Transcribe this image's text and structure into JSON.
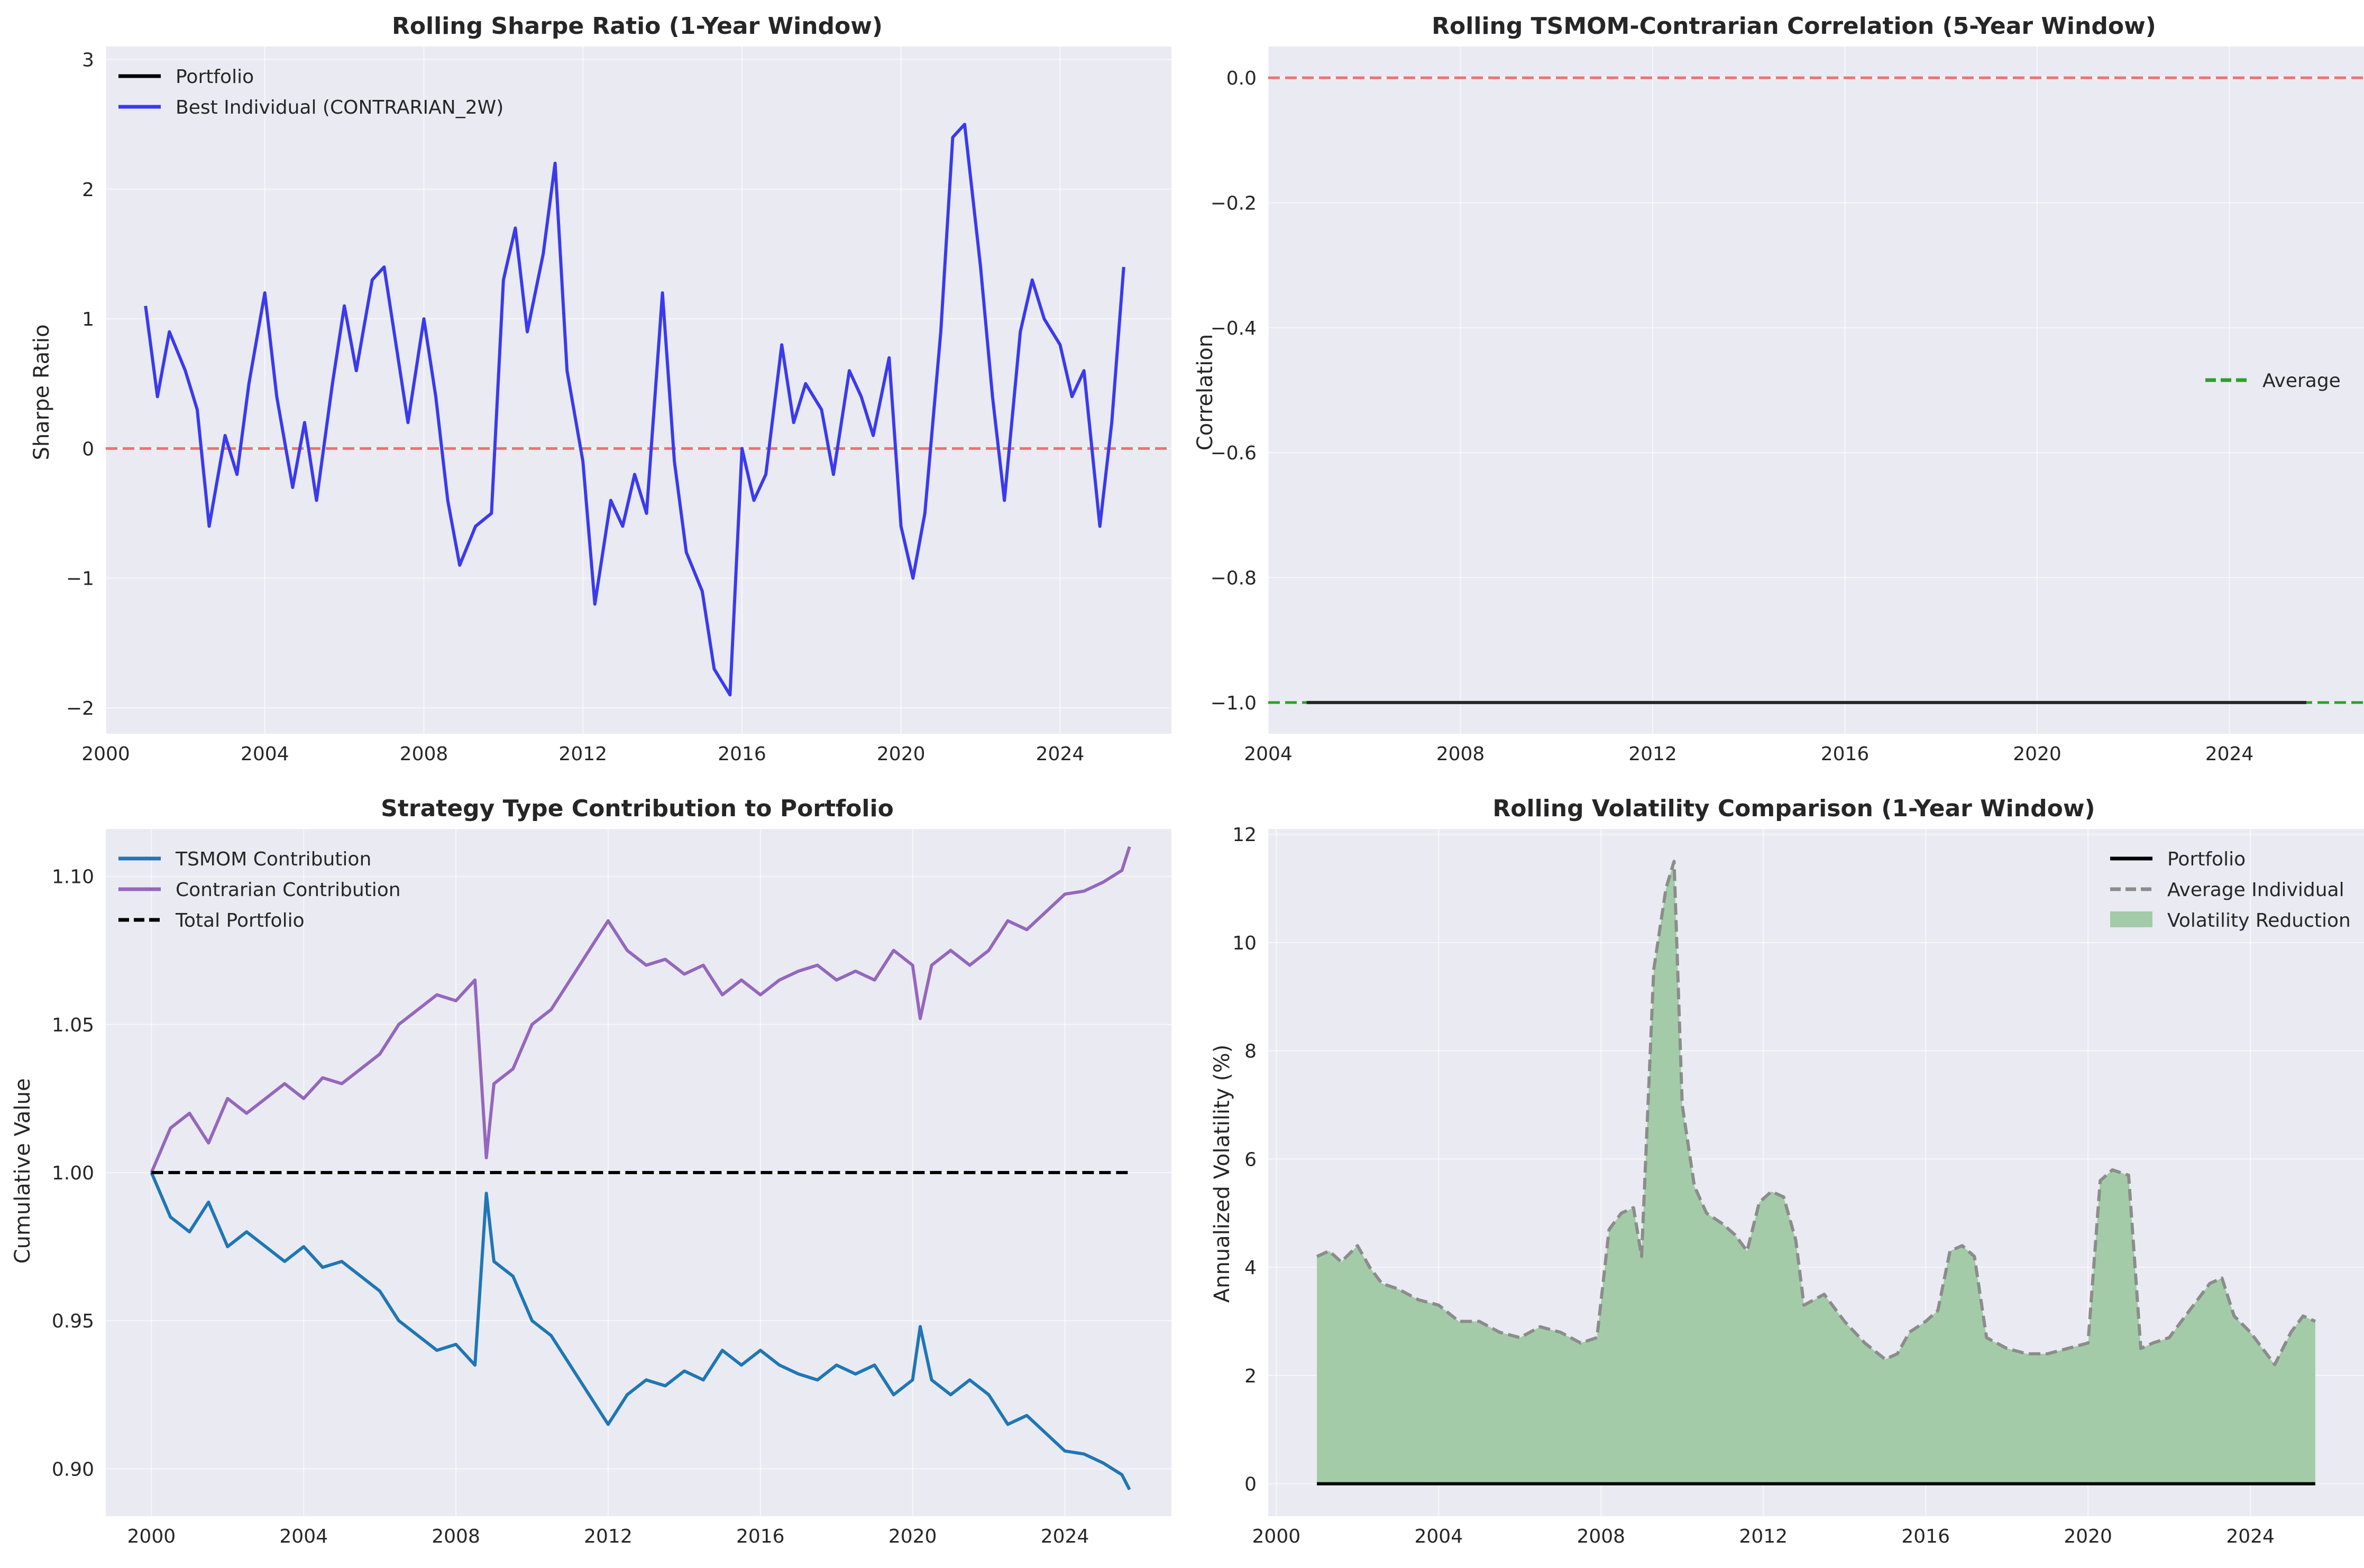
{
  "figure": {
    "background": "#ffffff",
    "axes_background": "#eaeaf2",
    "grid_color": "#ffffff"
  },
  "chart_data": [
    {
      "id": "sharpe",
      "type": "line",
      "title": "Rolling Sharpe Ratio (1-Year Window)",
      "xlabel": "",
      "ylabel": "Sharpe Ratio",
      "xlim": [
        2000,
        2026.8
      ],
      "ylim": [
        -2.2,
        3.1
      ],
      "xticks": [
        2000,
        2004,
        2008,
        2012,
        2016,
        2020,
        2024
      ],
      "yticks": [
        -2,
        -1,
        0,
        1,
        2,
        3
      ],
      "ytick_labels": [
        "−2",
        "−1",
        "0",
        "1",
        "2",
        "3"
      ],
      "grid": true,
      "legend": {
        "placement": "upper-left",
        "entries": [
          {
            "label": "Portfolio",
            "color": "#000000",
            "style": "solid"
          },
          {
            "label": "Best Individual (CONTRARIAN_2W)",
            "color": "#3a3aef",
            "style": "solid"
          }
        ]
      },
      "hlines": [
        {
          "y": 0,
          "color": "#f07070",
          "style": "dashed"
        }
      ],
      "series": [
        {
          "name": "Best Individual (CONTRARIAN_2W)",
          "color": "#3a3aef",
          "x": [
            2001.0,
            2001.3,
            2001.6,
            2002.0,
            2002.3,
            2002.6,
            2003.0,
            2003.3,
            2003.6,
            2004.0,
            2004.3,
            2004.7,
            2005.0,
            2005.3,
            2005.7,
            2006.0,
            2006.3,
            2006.7,
            2007.0,
            2007.3,
            2007.6,
            2008.0,
            2008.3,
            2008.6,
            2008.9,
            2009.3,
            2009.7,
            2010.0,
            2010.3,
            2010.6,
            2011.0,
            2011.3,
            2011.6,
            2012.0,
            2012.3,
            2012.7,
            2013.0,
            2013.3,
            2013.6,
            2014.0,
            2014.3,
            2014.6,
            2015.0,
            2015.3,
            2015.7,
            2016.0,
            2016.3,
            2016.6,
            2017.0,
            2017.3,
            2017.6,
            2018.0,
            2018.3,
            2018.7,
            2019.0,
            2019.3,
            2019.7,
            2020.0,
            2020.3,
            2020.6,
            2021.0,
            2021.3,
            2021.6,
            2022.0,
            2022.3,
            2022.6,
            2023.0,
            2023.3,
            2023.6,
            2024.0,
            2024.3,
            2024.6,
            2025.0,
            2025.3,
            2025.6
          ],
          "y": [
            1.1,
            0.4,
            0.9,
            0.6,
            0.3,
            -0.6,
            0.1,
            -0.2,
            0.5,
            1.2,
            0.4,
            -0.3,
            0.2,
            -0.4,
            0.5,
            1.1,
            0.6,
            1.3,
            1.4,
            0.8,
            0.2,
            1.0,
            0.4,
            -0.4,
            -0.9,
            -0.6,
            -0.5,
            1.3,
            1.7,
            0.9,
            1.5,
            2.2,
            0.6,
            -0.1,
            -1.2,
            -0.4,
            -0.6,
            -0.2,
            -0.5,
            1.2,
            -0.1,
            -0.8,
            -1.1,
            -1.7,
            -1.9,
            0.0,
            -0.4,
            -0.2,
            0.8,
            0.2,
            0.5,
            0.3,
            -0.2,
            0.6,
            0.4,
            0.1,
            0.7,
            -0.6,
            -1.0,
            -0.5,
            0.9,
            2.4,
            2.5,
            1.4,
            0.4,
            -0.4,
            0.9,
            1.3,
            1.0,
            0.8,
            0.4,
            0.6,
            -0.6,
            0.2,
            1.4
          ]
        }
      ]
    },
    {
      "id": "corr",
      "type": "line",
      "title": "Rolling TSMOM-Contrarian Correlation (5-Year Window)",
      "xlabel": "",
      "ylabel": "Correlation",
      "xlim": [
        2004.0,
        2026.8
      ],
      "ylim": [
        -1.05,
        0.05
      ],
      "xticks": [
        2004,
        2008,
        2012,
        2016,
        2020,
        2024
      ],
      "yticks": [
        -1.0,
        -0.8,
        -0.6,
        -0.4,
        -0.2,
        0.0
      ],
      "ytick_labels": [
        "−1.0",
        "−0.8",
        "−0.6",
        "−0.4",
        "−0.2",
        "0.0"
      ],
      "grid": true,
      "legend": {
        "placement": "center-right",
        "entries": [
          {
            "label": "Average",
            "color": "#2ca02c",
            "style": "dashed"
          }
        ]
      },
      "hlines": [
        {
          "y": 0.0,
          "color": "#f07070",
          "style": "dashed"
        },
        {
          "y": -1.0,
          "color": "#2ca02c",
          "style": "dashed"
        }
      ],
      "series": [
        {
          "name": "",
          "color": "#262626",
          "x": [
            2004.8,
            2025.6
          ],
          "y": [
            -1.0,
            -1.0
          ]
        }
      ]
    },
    {
      "id": "contrib",
      "type": "line",
      "title": "Strategy Type Contribution to Portfolio",
      "xlabel": "",
      "ylabel": "Cumulative Value",
      "xlim": [
        1998.8,
        2026.8
      ],
      "ylim": [
        0.884,
        1.116
      ],
      "xticks": [
        2000,
        2004,
        2008,
        2012,
        2016,
        2020,
        2024
      ],
      "yticks": [
        0.9,
        0.95,
        1.0,
        1.05,
        1.1
      ],
      "ytick_labels": [
        "0.90",
        "0.95",
        "1.00",
        "1.05",
        "1.10"
      ],
      "grid": true,
      "legend": {
        "placement": "upper-left",
        "entries": [
          {
            "label": "TSMOM Contribution",
            "color": "#1f77b4",
            "style": "solid"
          },
          {
            "label": "Contrarian Contribution",
            "color": "#9467bd",
            "style": "solid"
          },
          {
            "label": "Total Portfolio",
            "color": "#000000",
            "style": "dashed"
          }
        ]
      },
      "series": [
        {
          "name": "TSMOM Contribution",
          "color": "#1f77b4",
          "x": [
            2000.0,
            2000.5,
            2001.0,
            2001.5,
            2002.0,
            2002.5,
            2003.0,
            2003.5,
            2004.0,
            2004.5,
            2005.0,
            2005.5,
            2006.0,
            2006.5,
            2007.0,
            2007.5,
            2008.0,
            2008.5,
            2008.8,
            2009.0,
            2009.5,
            2010.0,
            2010.5,
            2011.0,
            2011.5,
            2012.0,
            2012.5,
            2013.0,
            2013.5,
            2014.0,
            2014.5,
            2015.0,
            2015.5,
            2016.0,
            2016.5,
            2017.0,
            2017.5,
            2018.0,
            2018.5,
            2019.0,
            2019.5,
            2020.0,
            2020.2,
            2020.5,
            2021.0,
            2021.5,
            2022.0,
            2022.5,
            2023.0,
            2023.5,
            2024.0,
            2024.5,
            2025.0,
            2025.5,
            2025.7
          ],
          "y": [
            1.0,
            0.985,
            0.98,
            0.99,
            0.975,
            0.98,
            0.975,
            0.97,
            0.975,
            0.968,
            0.97,
            0.965,
            0.96,
            0.95,
            0.945,
            0.94,
            0.942,
            0.935,
            0.993,
            0.97,
            0.965,
            0.95,
            0.945,
            0.935,
            0.925,
            0.915,
            0.925,
            0.93,
            0.928,
            0.933,
            0.93,
            0.94,
            0.935,
            0.94,
            0.935,
            0.932,
            0.93,
            0.935,
            0.932,
            0.935,
            0.925,
            0.93,
            0.948,
            0.93,
            0.925,
            0.93,
            0.925,
            0.915,
            0.918,
            0.912,
            0.906,
            0.905,
            0.902,
            0.898,
            0.893
          ]
        },
        {
          "name": "Contrarian Contribution",
          "color": "#9467bd",
          "x": [
            2000.0,
            2000.5,
            2001.0,
            2001.5,
            2002.0,
            2002.5,
            2003.0,
            2003.5,
            2004.0,
            2004.5,
            2005.0,
            2005.5,
            2006.0,
            2006.5,
            2007.0,
            2007.5,
            2008.0,
            2008.5,
            2008.8,
            2009.0,
            2009.5,
            2010.0,
            2010.5,
            2011.0,
            2011.5,
            2012.0,
            2012.5,
            2013.0,
            2013.5,
            2014.0,
            2014.5,
            2015.0,
            2015.5,
            2016.0,
            2016.5,
            2017.0,
            2017.5,
            2018.0,
            2018.5,
            2019.0,
            2019.5,
            2020.0,
            2020.2,
            2020.5,
            2021.0,
            2021.5,
            2022.0,
            2022.5,
            2023.0,
            2023.5,
            2024.0,
            2024.5,
            2025.0,
            2025.5,
            2025.7
          ],
          "y": [
            1.0,
            1.015,
            1.02,
            1.01,
            1.025,
            1.02,
            1.025,
            1.03,
            1.025,
            1.032,
            1.03,
            1.035,
            1.04,
            1.05,
            1.055,
            1.06,
            1.058,
            1.065,
            1.005,
            1.03,
            1.035,
            1.05,
            1.055,
            1.065,
            1.075,
            1.085,
            1.075,
            1.07,
            1.072,
            1.067,
            1.07,
            1.06,
            1.065,
            1.06,
            1.065,
            1.068,
            1.07,
            1.065,
            1.068,
            1.065,
            1.075,
            1.07,
            1.052,
            1.07,
            1.075,
            1.07,
            1.075,
            1.085,
            1.082,
            1.088,
            1.094,
            1.095,
            1.098,
            1.102,
            1.11
          ]
        },
        {
          "name": "Total Portfolio",
          "color": "#000000",
          "style": "dashed",
          "x": [
            2000.0,
            2025.7
          ],
          "y": [
            1.0,
            1.0
          ]
        }
      ]
    },
    {
      "id": "vol",
      "type": "area",
      "title": "Rolling Volatility Comparison (1-Year Window)",
      "xlabel": "",
      "ylabel": "Annualized Volatility (%)",
      "xlim": [
        1999.8,
        2026.8
      ],
      "ylim": [
        -0.6,
        12.1
      ],
      "xticks": [
        2000,
        2004,
        2008,
        2012,
        2016,
        2020,
        2024
      ],
      "yticks": [
        0,
        2,
        4,
        6,
        8,
        10,
        12
      ],
      "ytick_labels": [
        "0",
        "2",
        "4",
        "6",
        "8",
        "10",
        "12"
      ],
      "grid": true,
      "legend": {
        "placement": "upper-right",
        "entries": [
          {
            "label": "Portfolio",
            "color": "#000000",
            "style": "solid"
          },
          {
            "label": "Average Individual",
            "color": "#8c8c8c",
            "style": "dashed"
          },
          {
            "label": "Volatility Reduction",
            "color": "#a3cba8",
            "style": "patch"
          }
        ]
      },
      "series": [
        {
          "name": "Average Individual",
          "color": "#8c8c8c",
          "style": "dashed",
          "x": [
            2001.0,
            2001.3,
            2001.6,
            2002.0,
            2002.3,
            2002.6,
            2003.0,
            2003.5,
            2004.0,
            2004.5,
            2005.0,
            2005.5,
            2006.0,
            2006.5,
            2007.0,
            2007.5,
            2007.9,
            2008.2,
            2008.5,
            2008.8,
            2009.0,
            2009.3,
            2009.6,
            2009.8,
            2010.0,
            2010.3,
            2010.6,
            2011.0,
            2011.3,
            2011.6,
            2011.9,
            2012.2,
            2012.5,
            2012.8,
            2013.0,
            2013.5,
            2014.0,
            2014.5,
            2015.0,
            2015.3,
            2015.6,
            2016.0,
            2016.3,
            2016.6,
            2016.9,
            2017.2,
            2017.5,
            2018.0,
            2018.5,
            2019.0,
            2019.5,
            2020.0,
            2020.3,
            2020.6,
            2021.0,
            2021.3,
            2021.6,
            2022.0,
            2022.5,
            2023.0,
            2023.3,
            2023.6,
            2024.0,
            2024.3,
            2024.6,
            2025.0,
            2025.3,
            2025.6
          ],
          "y": [
            4.2,
            4.3,
            4.1,
            4.4,
            4.0,
            3.7,
            3.6,
            3.4,
            3.3,
            3.0,
            3.0,
            2.8,
            2.7,
            2.9,
            2.8,
            2.6,
            2.7,
            4.7,
            5.0,
            5.1,
            4.2,
            9.5,
            11.0,
            11.5,
            7.0,
            5.5,
            5.0,
            4.8,
            4.6,
            4.3,
            5.2,
            5.4,
            5.3,
            4.5,
            3.3,
            3.5,
            3.0,
            2.6,
            2.3,
            2.4,
            2.8,
            3.0,
            3.2,
            4.3,
            4.4,
            4.2,
            2.7,
            2.5,
            2.4,
            2.4,
            2.5,
            2.6,
            5.6,
            5.8,
            5.7,
            2.5,
            2.6,
            2.7,
            3.2,
            3.7,
            3.8,
            3.1,
            2.8,
            2.5,
            2.2,
            2.8,
            3.1,
            3.0
          ]
        },
        {
          "name": "Portfolio",
          "color": "#000000",
          "x": [
            2001.0,
            2025.6
          ],
          "y": [
            0.0,
            0.0
          ]
        }
      ],
      "fill": {
        "label": "Volatility Reduction",
        "color": "#a3cba8",
        "between": [
          "Average Individual",
          "Portfolio"
        ]
      }
    }
  ]
}
